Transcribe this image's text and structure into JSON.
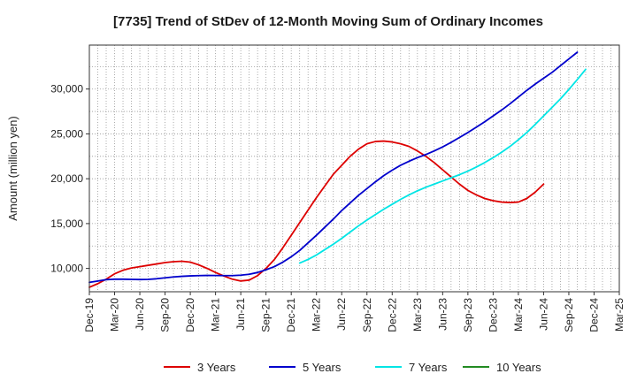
{
  "chart_data": {
    "type": "line",
    "title": "[7735]  Trend of StDev of 12-Month Moving Sum of Ordinary Incomes",
    "xlabel": "",
    "ylabel": "Amount (million yen)",
    "ylim": [
      7400,
      34900
    ],
    "yticks": [
      10000,
      15000,
      20000,
      25000,
      30000
    ],
    "ytick_labels": [
      "10,000",
      "15,000",
      "20,000",
      "25,000",
      "30,000"
    ],
    "x_labels": [
      "Dec-19",
      "Mar-20",
      "Jun-20",
      "Sep-20",
      "Dec-20",
      "Mar-21",
      "Jun-21",
      "Sep-21",
      "Dec-21",
      "Mar-22",
      "Jun-22",
      "Sep-22",
      "Dec-22",
      "Mar-23",
      "Jun-23",
      "Sep-23",
      "Dec-23",
      "Mar-24",
      "Jun-24",
      "Sep-24",
      "Dec-24",
      "Mar-25"
    ],
    "grid": true,
    "legend_position": "bottom",
    "series": [
      {
        "name": "3 Years",
        "color": "#dd0000",
        "start": 0,
        "values": [
          7900,
          8300,
          8800,
          9400,
          9800,
          10050,
          10200,
          10350,
          10500,
          10650,
          10750,
          10800,
          10700,
          10400,
          10000,
          9550,
          9150,
          8800,
          8600,
          8700,
          9200,
          10000,
          11000,
          12300,
          13700,
          15100,
          16500,
          17900,
          19200,
          20500,
          21500,
          22500,
          23300,
          23900,
          24150,
          24200,
          24100,
          23900,
          23600,
          23100,
          22500,
          21800,
          21000,
          20200,
          19400,
          18700,
          18200,
          17800,
          17550,
          17400,
          17350,
          17400,
          17800,
          18500,
          19400
        ]
      },
      {
        "name": "5 Years",
        "color": "#0000cc",
        "start": 0,
        "values": [
          8450,
          8600,
          8750,
          8800,
          8800,
          8780,
          8760,
          8780,
          8850,
          8950,
          9050,
          9120,
          9170,
          9200,
          9220,
          9210,
          9200,
          9200,
          9250,
          9350,
          9550,
          9850,
          10200,
          10700,
          11300,
          12000,
          12850,
          13700,
          14600,
          15500,
          16450,
          17300,
          18150,
          18900,
          19650,
          20350,
          20950,
          21500,
          21950,
          22350,
          22700,
          23100,
          23550,
          24050,
          24600,
          25150,
          25750,
          26350,
          27000,
          27650,
          28350,
          29100,
          29850,
          30550,
          31200,
          31850,
          32600,
          33350,
          34100
        ]
      },
      {
        "name": "7 Years",
        "color": "#00e5e5",
        "start": 25,
        "values": [
          10600,
          11000,
          11500,
          12100,
          12700,
          13350,
          14050,
          14750,
          15400,
          16000,
          16600,
          17150,
          17700,
          18200,
          18650,
          19050,
          19400,
          19750,
          20100,
          20450,
          20850,
          21300,
          21800,
          22350,
          22950,
          23600,
          24350,
          25150,
          26050,
          27000,
          27950,
          28900,
          29950,
          31050,
          32200
        ]
      },
      {
        "name": "10 Years",
        "color": "#228b22",
        "start": 0,
        "values": []
      }
    ]
  }
}
